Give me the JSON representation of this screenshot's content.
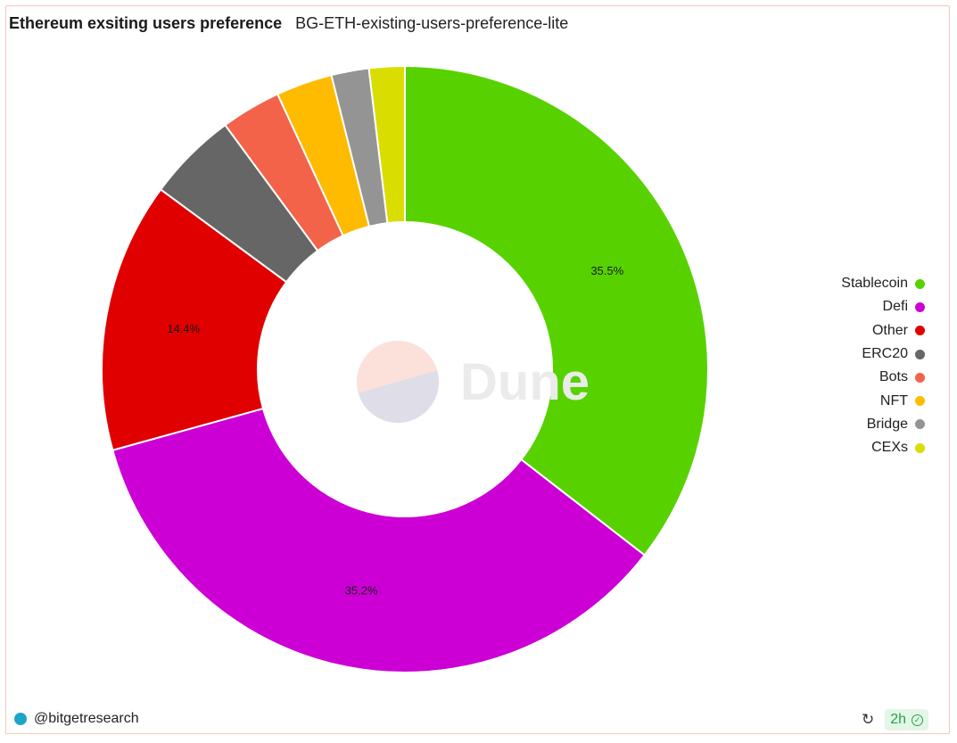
{
  "header": {
    "title": "Ethereum exsiting users preference",
    "subtitle": "BG-ETH-existing-users-preference-lite"
  },
  "chart_data": {
    "type": "pie",
    "donut": true,
    "labels": [
      "Stablecoin",
      "Defi",
      "Other",
      "ERC20",
      "Bots",
      "NFT",
      "Bridge",
      "CEXs"
    ],
    "values": [
      35.5,
      35.2,
      14.4,
      4.8,
      3.2,
      3.0,
      2.0,
      1.9
    ],
    "colors": [
      "#57d200",
      "#cc00d4",
      "#e00000",
      "#666666",
      "#f2634a",
      "#ffbb00",
      "#949494",
      "#d9dd00"
    ],
    "data_labels": [
      "35.5%",
      "35.2%",
      "14.4%",
      "",
      "",
      "",
      "",
      ""
    ],
    "legend_position": "right"
  },
  "watermark": {
    "text": "Dune"
  },
  "footer": {
    "author": "@bitgetresearch",
    "age": "2h",
    "refresh_icon": "refresh-icon",
    "check_icon": "check-circle-icon"
  }
}
